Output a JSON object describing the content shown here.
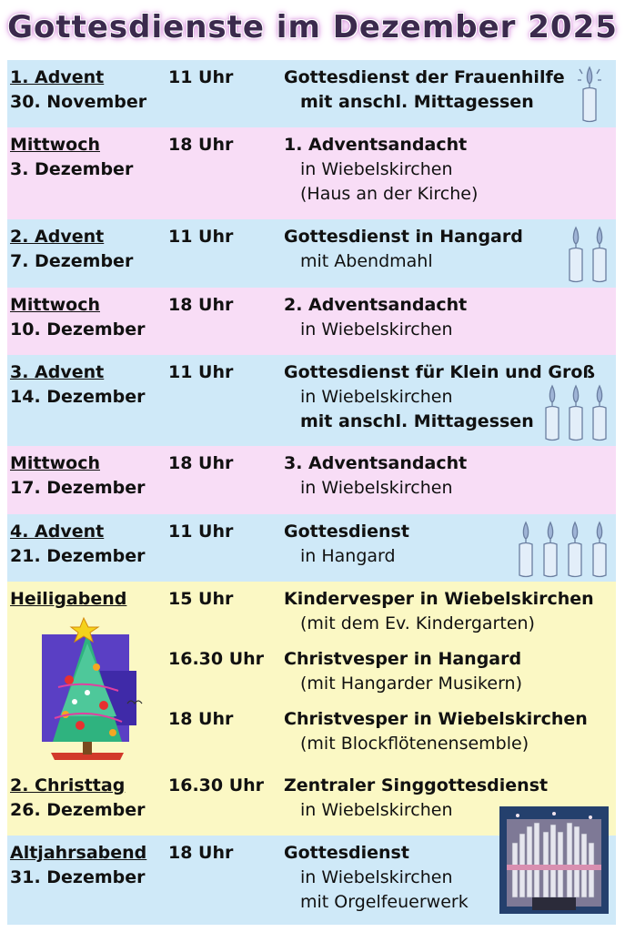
{
  "title": "Gottesdienste im Dezember 2025",
  "rows": [
    {
      "day": "1. Advent",
      "date": "30. November",
      "time": "11 Uhr",
      "line1": "Gottesdienst der Frauenhilfe",
      "line2": "mit anschl. Mittagessen"
    },
    {
      "day": "Mittwoch",
      "date": "3. Dezember",
      "time": "18 Uhr",
      "line1": "1. Adventsandacht",
      "line2": "in Wiebelskirchen",
      "line3": "(Haus an der Kirche)"
    },
    {
      "day": "2. Advent",
      "date": "7. Dezember",
      "time": "11 Uhr",
      "line1": "Gottesdienst in Hangard",
      "line2": "mit Abendmahl"
    },
    {
      "day": "Mittwoch",
      "date": "10. Dezember",
      "time": "18 Uhr",
      "line1": "2. Adventsandacht",
      "line2": "in Wiebelskirchen"
    },
    {
      "day": "3. Advent",
      "date": "14. Dezember",
      "time": "11 Uhr",
      "line1": "Gottesdienst für Klein und Groß",
      "line2": "in Wiebelskirchen",
      "line3": "mit anschl. Mittagessen"
    },
    {
      "day": "Mittwoch",
      "date": "17. Dezember",
      "time": "18 Uhr",
      "line1": "3. Adventsandacht",
      "line2": "in Wiebelskirchen"
    },
    {
      "day": "4. Advent",
      "date": "21. Dezember",
      "time": "11 Uhr",
      "line1": "Gottesdienst",
      "line2": "in Hangard"
    },
    {
      "day": "Heiligabend",
      "services": [
        {
          "time": "15 Uhr",
          "line1": "Kindervesper in Wiebelskirchen",
          "line2": "(mit dem Ev. Kindergarten)"
        },
        {
          "time": "16.30 Uhr",
          "line1": "Christvesper in Hangard",
          "line2": "(mit Hangarder Musikern)"
        },
        {
          "time": "18 Uhr",
          "line1": "Christvesper in Wiebelskirchen",
          "line2": "(mit Blockflötenensemble)"
        }
      ]
    },
    {
      "day": "2. Christtag",
      "date": "26. Dezember",
      "time": "16.30 Uhr",
      "line1": "Zentraler Singgottesdienst",
      "line2": "in Wiebelskirchen"
    },
    {
      "day": "Altjahrsabend",
      "date": "31. Dezember",
      "time": "18 Uhr",
      "line1": "Gottesdienst",
      "line2": "in Wiebelskirchen",
      "line3": "mit Orgelfeuerwerk"
    }
  ],
  "decorations": {
    "candle": "candle-icon",
    "tree": "christmas-tree-drawing",
    "organ": "organ-photo",
    "colors": {
      "blue": "#cfe9f8",
      "pink": "#f8ddf6",
      "yellow": "#fbf8c4"
    }
  }
}
